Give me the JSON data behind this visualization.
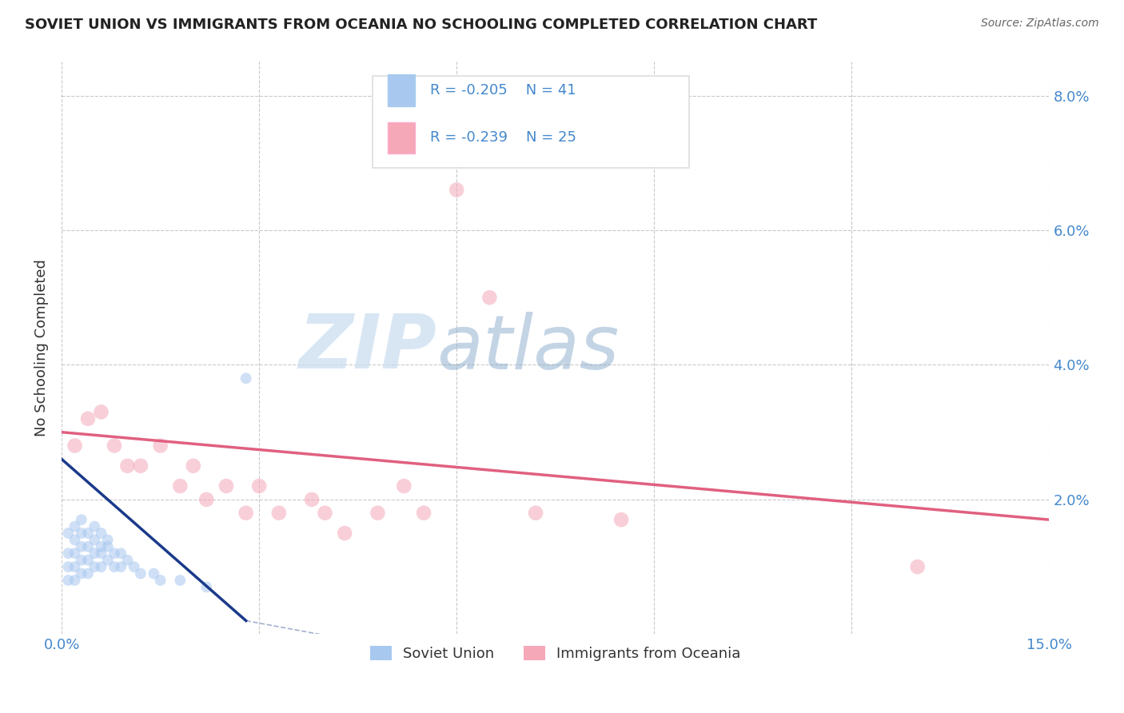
{
  "title": "SOVIET UNION VS IMMIGRANTS FROM OCEANIA NO SCHOOLING COMPLETED CORRELATION CHART",
  "source": "Source: ZipAtlas.com",
  "ylabel": "No Schooling Completed",
  "xlim": [
    0.0,
    0.15
  ],
  "ylim": [
    0.0,
    0.085
  ],
  "xticks": [
    0.0,
    0.03,
    0.06,
    0.09,
    0.12,
    0.15
  ],
  "xticklabels": [
    "0.0%",
    "",
    "",
    "",
    "",
    "15.0%"
  ],
  "yticks": [
    0.0,
    0.02,
    0.04,
    0.06,
    0.08
  ],
  "yticklabels_right": [
    "",
    "2.0%",
    "4.0%",
    "6.0%",
    "8.0%"
  ],
  "legend_r1": "R = -0.205",
  "legend_n1": "N = 41",
  "legend_r2": "R = -0.239",
  "legend_n2": "N = 25",
  "color_soviet": "#A8C8F0",
  "color_oceania": "#F4A8B8",
  "color_line_soviet": "#1a3a8a",
  "color_line_oceania": "#E06080",
  "color_tick_labels": "#4488CC",
  "background_color": "#FFFFFF",
  "watermark_zip": "ZIP",
  "watermark_atlas": "atlas",
  "soviet_x": [
    0.001,
    0.001,
    0.001,
    0.001,
    0.002,
    0.002,
    0.002,
    0.002,
    0.002,
    0.003,
    0.003,
    0.003,
    0.003,
    0.003,
    0.004,
    0.004,
    0.004,
    0.004,
    0.005,
    0.005,
    0.005,
    0.005,
    0.006,
    0.006,
    0.006,
    0.006,
    0.007,
    0.007,
    0.007,
    0.008,
    0.008,
    0.009,
    0.009,
    0.01,
    0.011,
    0.012,
    0.014,
    0.015,
    0.018,
    0.022,
    0.028
  ],
  "soviet_y": [
    0.008,
    0.01,
    0.012,
    0.015,
    0.008,
    0.01,
    0.012,
    0.014,
    0.016,
    0.009,
    0.011,
    0.013,
    0.015,
    0.017,
    0.009,
    0.011,
    0.013,
    0.015,
    0.01,
    0.012,
    0.014,
    0.016,
    0.01,
    0.012,
    0.013,
    0.015,
    0.011,
    0.013,
    0.014,
    0.01,
    0.012,
    0.01,
    0.012,
    0.011,
    0.01,
    0.009,
    0.009,
    0.008,
    0.008,
    0.007,
    0.038
  ],
  "oceania_x": [
    0.002,
    0.004,
    0.006,
    0.008,
    0.01,
    0.012,
    0.015,
    0.018,
    0.02,
    0.022,
    0.025,
    0.028,
    0.03,
    0.033,
    0.038,
    0.04,
    0.043,
    0.048,
    0.052,
    0.055,
    0.06,
    0.065,
    0.072,
    0.085,
    0.13
  ],
  "oceania_y": [
    0.028,
    0.032,
    0.033,
    0.028,
    0.025,
    0.025,
    0.028,
    0.022,
    0.025,
    0.02,
    0.022,
    0.018,
    0.022,
    0.018,
    0.02,
    0.018,
    0.015,
    0.018,
    0.022,
    0.018,
    0.066,
    0.05,
    0.018,
    0.017,
    0.01
  ],
  "dot_size_soviet": 100,
  "dot_size_oceania": 180,
  "alpha_soviet": 0.55,
  "alpha_oceania": 0.55,
  "soviet_line_x": [
    0.0,
    0.028
  ],
  "soviet_line_y": [
    0.026,
    0.002
  ],
  "oceania_line_x": [
    0.0,
    0.15
  ],
  "oceania_line_y": [
    0.03,
    0.017
  ]
}
